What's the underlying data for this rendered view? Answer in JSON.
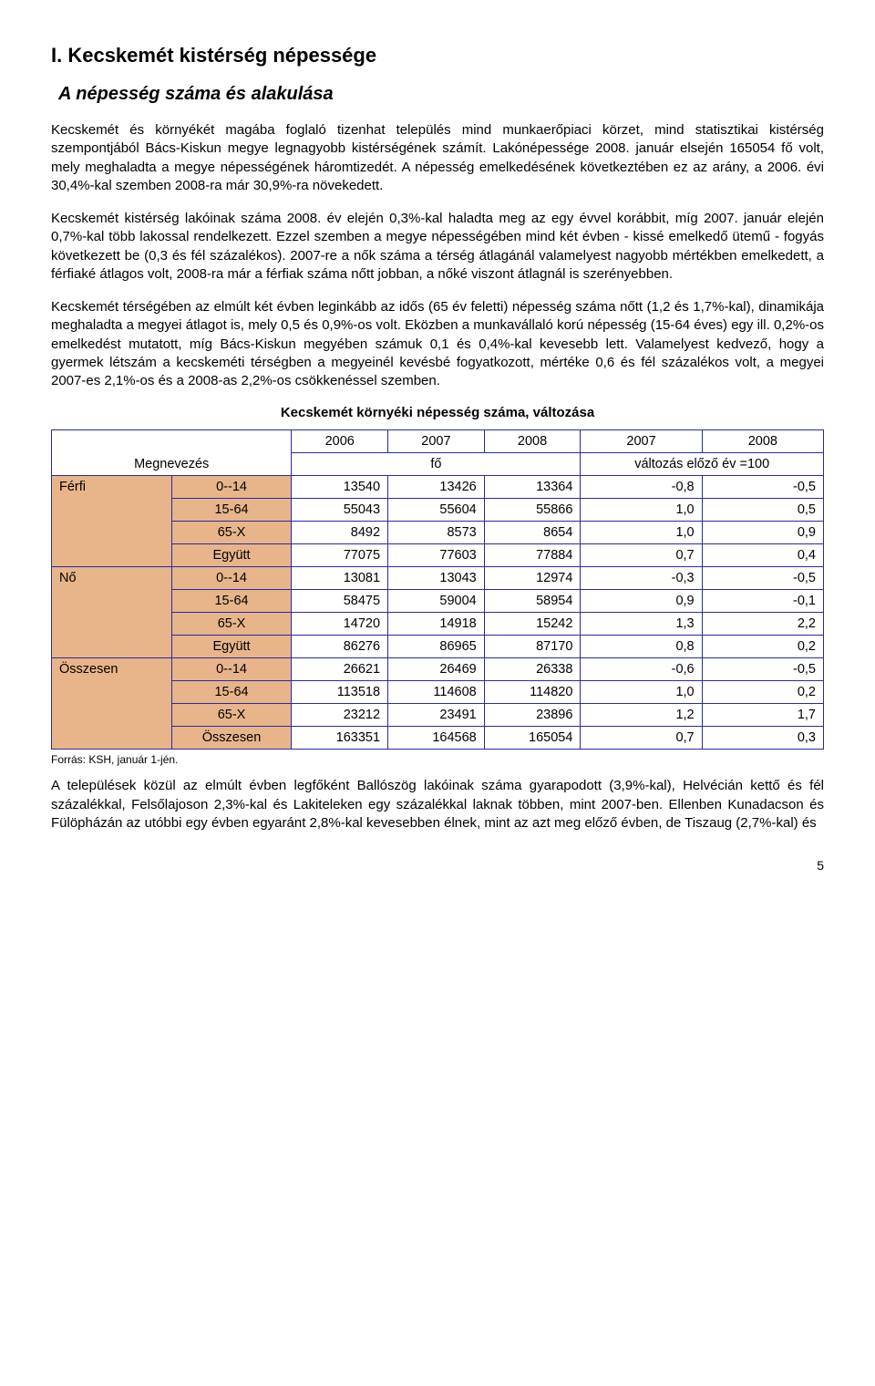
{
  "page": {
    "h1": "I. Kecskemét kistérség népessége",
    "h2": "A népesség száma és alakulása",
    "p1": "Kecskemét és környékét magába foglaló tizenhat település mind munkaerőpiaci körzet, mind statisztikai kistérség szempontjából Bács-Kiskun megye legnagyobb kistérségének számít. Lakónépessége 2008. január elsején 165054 fő volt, mely meghaladta a megye népességének háromtizedét. A népesség emelkedésének következtében ez az arány, a 2006. évi 30,4%-kal szemben 2008-ra már 30,9%-ra növekedett.",
    "p2": "Kecskemét kistérség lakóinak száma 2008. év elején 0,3%-kal haladta meg az egy évvel korábbit, míg 2007. január elején 0,7%-kal több lakossal rendelkezett. Ezzel szemben a megye népességében mind két évben - kissé emelkedő ütemű  - fogyás következett be (0,3 és fél százalékos). 2007-re a nők száma a térség átlagánál valamelyest nagyobb mértékben emelkedett, a férfiaké átlagos volt, 2008-ra már a férfiak száma nőtt jobban, a nőké viszont átlagnál is szerényebben.",
    "p3": "Kecskemét térségében az elmúlt két évben leginkább az idős (65 év feletti) népesség száma nőtt (1,2 és 1,7%-kal), dinamikája meghaladta a megyei átlagot is, mely 0,5 és 0,9%-os volt. Eközben a munkavállaló korú népesség (15-64 éves) egy ill. 0,2%-os emelkedést mutatott, míg Bács-Kiskun megyében számuk 0,1 és 0,4%-kal kevesebb lett. Valamelyest kedvező, hogy a gyermek létszám a kecskeméti térségben a megyeinél kevésbé fogyatkozott, mértéke 0,6 és fél százalékos volt,  a megyei 2007-es 2,1%-os és a 2008-as 2,2%-os csökkenéssel szemben.",
    "table_title": "Kecskemét környéki népesség száma, változása",
    "footnote": "Forrás: KSH, január 1-jén.",
    "p4": "A települések közül az elmúlt évben legfőként Ballószög lakóinak száma gyarapodott (3,9%-kal), Helvécián kettő és fél százalékkal, Felsőlajoson 2,3%-kal és Lakiteleken egy százalékkal laknak többen, mint 2007-ben. Ellenben Kunadacson és Fülöpházán az utóbbi egy évben egyaránt 2,8%-kal kevesebben élnek, mint az azt meg előző évben, de Tiszaug (2,7%-kal) és",
    "page_number": "5"
  },
  "table": {
    "colors": {
      "header_bg": "#e8b58a",
      "border": "#2a2aa0",
      "cell_bg": "#ffffff"
    },
    "header": {
      "megnevezes": "Megnevezés",
      "y2006": "2006",
      "y2007": "2007",
      "y2008": "2008",
      "y2007b": "2007",
      "y2008b": "2008",
      "fo": "fő",
      "valtozas": "változás előző év =100"
    },
    "groups": [
      {
        "label": "Férfi",
        "rows": [
          {
            "age": "0--14",
            "v2006": "13540",
            "v2007": "13426",
            "v2008": "13364",
            "c2007": "-0,8",
            "c2008": "-0,5"
          },
          {
            "age": "15-64",
            "v2006": "55043",
            "v2007": "55604",
            "v2008": "55866",
            "c2007": "1,0",
            "c2008": "0,5"
          },
          {
            "age": "65-X",
            "v2006": "8492",
            "v2007": "8573",
            "v2008": "8654",
            "c2007": "1,0",
            "c2008": "0,9"
          },
          {
            "age": "Együtt",
            "v2006": "77075",
            "v2007": "77603",
            "v2008": "77884",
            "c2007": "0,7",
            "c2008": "0,4"
          }
        ]
      },
      {
        "label": "Nő",
        "rows": [
          {
            "age": "0--14",
            "v2006": "13081",
            "v2007": "13043",
            "v2008": "12974",
            "c2007": "-0,3",
            "c2008": "-0,5"
          },
          {
            "age": "15-64",
            "v2006": "58475",
            "v2007": "59004",
            "v2008": "58954",
            "c2007": "0,9",
            "c2008": "-0,1"
          },
          {
            "age": "65-X",
            "v2006": "14720",
            "v2007": "14918",
            "v2008": "15242",
            "c2007": "1,3",
            "c2008": "2,2"
          },
          {
            "age": "Együtt",
            "v2006": "86276",
            "v2007": "86965",
            "v2008": "87170",
            "c2007": "0,8",
            "c2008": "0,2"
          }
        ]
      },
      {
        "label": "Összesen",
        "rows": [
          {
            "age": "0--14",
            "v2006": "26621",
            "v2007": "26469",
            "v2008": "26338",
            "c2007": "-0,6",
            "c2008": "-0,5"
          },
          {
            "age": "15-64",
            "v2006": "113518",
            "v2007": "114608",
            "v2008": "114820",
            "c2007": "1,0",
            "c2008": "0,2"
          },
          {
            "age": "65-X",
            "v2006": "23212",
            "v2007": "23491",
            "v2008": "23896",
            "c2007": "1,2",
            "c2008": "1,7"
          },
          {
            "age": "Összesen",
            "v2006": "163351",
            "v2007": "164568",
            "v2008": "165054",
            "c2007": "0,7",
            "c2008": "0,3"
          }
        ]
      }
    ]
  }
}
